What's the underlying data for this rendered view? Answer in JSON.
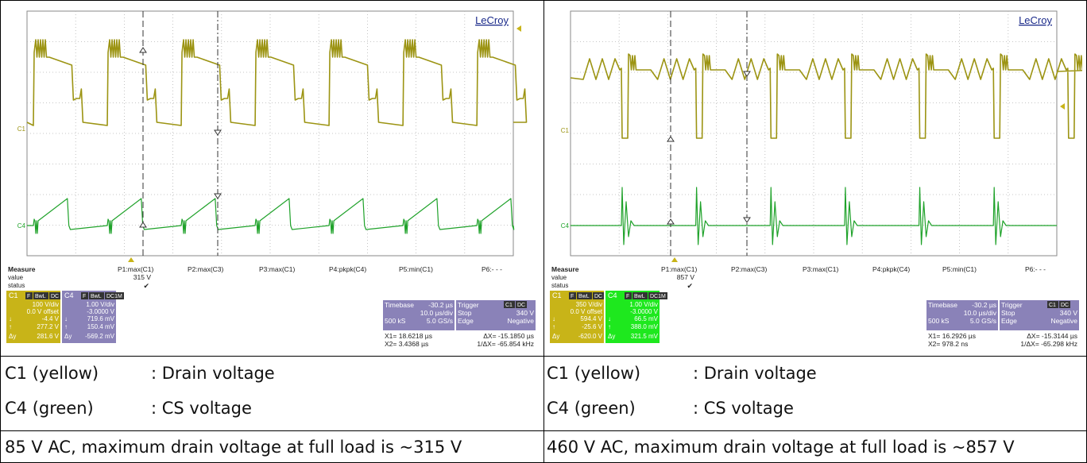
{
  "scopes": [
    {
      "brand": "LeCroy",
      "ch1_marker": "C1",
      "ch4_marker": "C4",
      "measure": {
        "header": "Measure",
        "row_labels": [
          "value",
          "status"
        ],
        "params": [
          "P1:max(C1)",
          "P2:max(C3)",
          "P3:max(C1)",
          "P4:pkpk(C4)",
          "P5:min(C1)",
          "P6:- - -"
        ],
        "p1_value": "315 V",
        "status_mark": "✔"
      },
      "c1_box": {
        "label": "C1",
        "badges": [
          "F",
          "BwL",
          "DC"
        ],
        "vdiv": "100 V/div",
        "offset": "0.0 V offset",
        "down": "-4.4 V",
        "up": "277.2 V",
        "dy": "281.6 V"
      },
      "c4_box": {
        "label": "C4",
        "badges": [
          "F",
          "BwL",
          "DC1M"
        ],
        "vdiv": "1.00 V/div",
        "offset": "-3.0000 V",
        "down": "719.6 mV",
        "up": "150.4 mV",
        "dy": "-569.2 mV"
      },
      "timebase": {
        "label": "Timebase",
        "delay": "-30.2 µs",
        "tdiv": "10.0 µs/div",
        "samples": "500 kS",
        "rate": "5.0 GS/s"
      },
      "trigger": {
        "label": "Trigger",
        "badges": [
          "C1",
          "DC"
        ],
        "mode": "Stop",
        "level": "340 V",
        "type": "Edge",
        "slope": "Negative"
      },
      "cursors": {
        "x1": "X1=  18.6218 µs",
        "dx": "ΔX=   -15.1850 µs",
        "x2": "X2=   3.4368 µs",
        "inv": "1/ΔX=   -65.854 kHz"
      }
    },
    {
      "brand": "LeCroy",
      "ch1_marker": "C1",
      "ch4_marker": "C4",
      "measure": {
        "header": "Measure",
        "row_labels": [
          "value",
          "status"
        ],
        "params": [
          "P1:max(C1)",
          "P2:max(C3)",
          "P3:max(C1)",
          "P4:pkpk(C4)",
          "P5:min(C1)",
          "P6:- - -"
        ],
        "p1_value": "857 V",
        "status_mark": "✔"
      },
      "c1_box": {
        "label": "C1",
        "badges": [
          "F",
          "BwL",
          "DC"
        ],
        "vdiv": "350 V/div",
        "offset": "0.0 V offset",
        "down": "594.4 V",
        "up": "-25.6 V",
        "dy": "-620.0 V"
      },
      "c4_box": {
        "label": "C4",
        "badges": [
          "F",
          "BwL",
          "DC1M"
        ],
        "vdiv": "1.00 V/div",
        "offset": "-3.0000 V",
        "down": "66.5 mV",
        "up": "388.0 mV",
        "dy": "321.5 mV"
      },
      "timebase": {
        "label": "Timebase",
        "delay": "-30.2 µs",
        "tdiv": "10.0 µs/div",
        "samples": "500 kS",
        "rate": "5.0 GS/s"
      },
      "trigger": {
        "label": "Trigger",
        "badges": [
          "C1",
          "DC"
        ],
        "mode": "Stop",
        "level": "340 V",
        "type": "Edge",
        "slope": "Negative"
      },
      "cursors": {
        "x1": "X1=  16.2926 µs",
        "dx": "ΔX=   -15.3144 µs",
        "x2": "X2=    978.2 ns",
        "inv": "1/ΔX=   -65.298 kHz"
      }
    }
  ],
  "legend_rows": [
    {
      "channel": "C1 (yellow)",
      "desc": ": Drain voltage"
    },
    {
      "channel": "C4 (green)",
      "desc": ": CS voltage"
    }
  ],
  "captions": [
    "85 V AC, maximum drain voltage at full load is ~315 V",
    "460 V AC, maximum drain voltage at full load is ~857 V"
  ],
  "colors": {
    "c1_trace": "#9c9413",
    "c4_trace": "#1fa22a",
    "c1_box_bg": "#c8b418",
    "c4_box_bg": "#8a82b8",
    "c4_box_bg_right": "#1ee81e",
    "info_bg": "#8a82b8"
  },
  "chart_data": [
    {
      "type": "line",
      "title": "",
      "xlabel": "",
      "ylabel": "",
      "x_units": "µs",
      "timebase_us_per_div": 10,
      "divisions": 10,
      "series": [
        {
          "name": "C1",
          "v_per_div": 100,
          "peak_V": 315,
          "switching_period_us": 15.2
        },
        {
          "name": "C4",
          "v_per_div": 1.0,
          "offset_V": -3.0
        }
      ],
      "cursor_x_us": [
        18.6218,
        3.4368
      ]
    },
    {
      "type": "line",
      "title": "",
      "xlabel": "",
      "ylabel": "",
      "x_units": "µs",
      "timebase_us_per_div": 10,
      "divisions": 10,
      "series": [
        {
          "name": "C1",
          "v_per_div": 350,
          "peak_V": 857,
          "switching_period_us": 15.3
        },
        {
          "name": "C4",
          "v_per_div": 1.0,
          "offset_V": -3.0
        }
      ],
      "cursor_x_us": [
        16.2926,
        0.9782
      ]
    }
  ]
}
